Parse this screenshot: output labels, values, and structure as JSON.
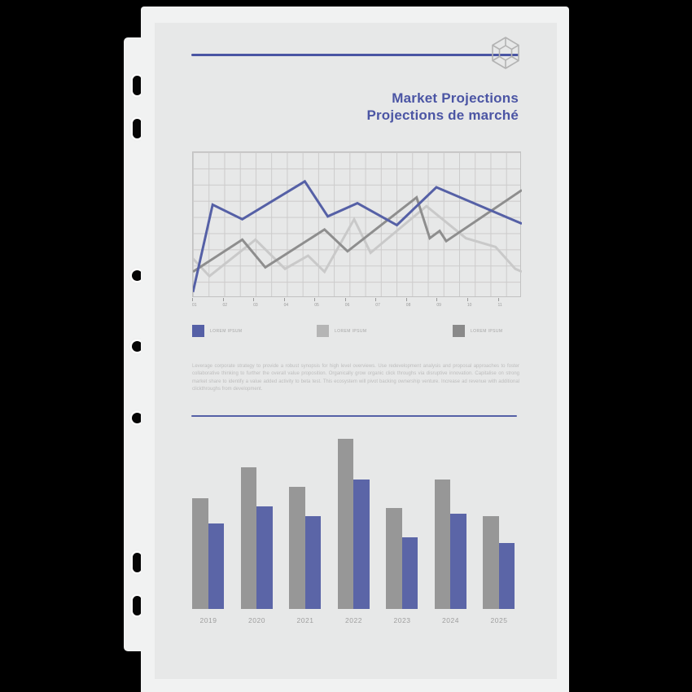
{
  "document": {
    "title_en": "Market Projections",
    "title_fr": "Projections de marché",
    "logo": "gem-hexagon-icon",
    "paragraph": "Leverage corporate strategy to provide a robust synopsis for high level overviews. Use redevelopment analysis and proposal approaches to foster collaborative thinking to further the overall value proposition. Organically grow organic click throughs via disruptive innovation. Capitalise on strong market share to identify a value added activity to beta test. This ecosystem will pivot backing ownership venture. Increase ad revenue with additional clickthroughs from development."
  },
  "colors": {
    "accent": "#4a55a3",
    "title_text": "#4b55a4",
    "line_blue": "#5560a6",
    "line_light": "#c9c9c9",
    "line_dark": "#8e8e8e",
    "legend_blue": "#5560a6",
    "legend_light": "#b5b5b5",
    "legend_dark": "#8a8a8a",
    "bar_gray": "#979797",
    "bar_blue": "#5b65a7",
    "grid": "#cccbcb",
    "muted_text": "#bdbdbd",
    "axis_text": "#9a9a9a",
    "page_bg": "#f1f2f2",
    "panel_bg": "#e7e8e8"
  },
  "chart_data": [
    {
      "type": "line",
      "x_labels": [
        "01",
        "02",
        "03",
        "04",
        "05",
        "06",
        "07",
        "08",
        "09",
        "10",
        "11"
      ],
      "y_range": [
        0,
        100
      ],
      "grid": true,
      "legend_position": "below",
      "series": [
        {
          "id": "blue",
          "name": "LOREM IPSUM",
          "color_key": "line_blue",
          "legend_color_key": "legend_blue",
          "points": [
            [
              0,
              4
            ],
            [
              6,
              64
            ],
            [
              15,
              54
            ],
            [
              34,
              80
            ],
            [
              41,
              56
            ],
            [
              50,
              65
            ],
            [
              62,
              50
            ],
            [
              74,
              76
            ],
            [
              100,
              51
            ]
          ]
        },
        {
          "id": "light",
          "name": "LOREM IPSUM",
          "color_key": "line_light",
          "legend_color_key": "legend_light",
          "points": [
            [
              0,
              27
            ],
            [
              5,
              15
            ],
            [
              19,
              40
            ],
            [
              28,
              20
            ],
            [
              35,
              29
            ],
            [
              40,
              18
            ],
            [
              49,
              54
            ],
            [
              54,
              31
            ],
            [
              71,
              63
            ],
            [
              83,
              41
            ],
            [
              92,
              35
            ],
            [
              98,
              20
            ],
            [
              100,
              18
            ]
          ]
        },
        {
          "id": "dark",
          "name": "LOREM IPSUM",
          "color_key": "line_dark",
          "legend_color_key": "legend_dark",
          "points": [
            [
              0,
              18
            ],
            [
              15,
              40
            ],
            [
              22,
              21
            ],
            [
              40,
              47
            ],
            [
              47,
              32
            ],
            [
              68,
              69
            ],
            [
              72,
              41
            ],
            [
              75,
              46
            ],
            [
              77,
              39
            ],
            [
              100,
              74
            ]
          ]
        }
      ]
    },
    {
      "type": "bar",
      "categories": [
        "2019",
        "2020",
        "2021",
        "2022",
        "2023",
        "2024",
        "2025"
      ],
      "ylim": [
        0,
        100
      ],
      "series": [
        {
          "id": "gray",
          "color_key": "bar_gray",
          "values": [
            57,
            73,
            63,
            88,
            52,
            67,
            48
          ]
        },
        {
          "id": "blue",
          "color_key": "bar_blue",
          "values": [
            44,
            53,
            48,
            67,
            37,
            49,
            34
          ]
        }
      ]
    }
  ]
}
